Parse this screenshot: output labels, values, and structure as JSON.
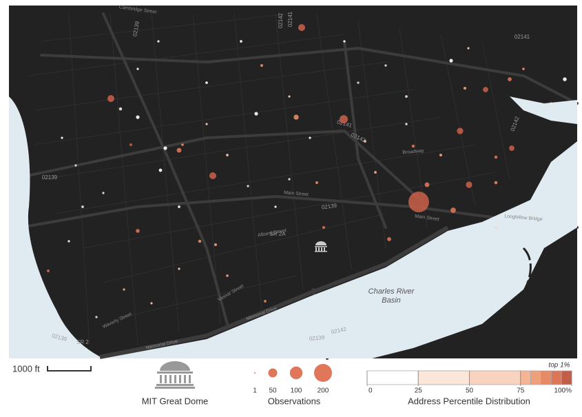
{
  "map": {
    "labels": [
      "Main Street",
      "Main Street",
      "Memorial Drive",
      "Memorial Drive",
      "Vassar Street",
      "Albany Street",
      "Waverly Street",
      "Broadway",
      "Cambridge Street",
      "Longfellow Bridge",
      "02139",
      "02139",
      "02139",
      "02139",
      "02139",
      "02141",
      "02141",
      "02141",
      "02142",
      "02142",
      "02142",
      "02142",
      "SR 2A",
      "SR 2"
    ],
    "water_labels": [
      "Charles River",
      "Basin"
    ],
    "points": {
      "observations": [
        265,
        43,
        30,
        30,
        30,
        25,
        18,
        18,
        25,
        18,
        10,
        16,
        14,
        10,
        14,
        9,
        4,
        4,
        8,
        8,
        9,
        8,
        8,
        7,
        6,
        6,
        5,
        6,
        6,
        6,
        5,
        5,
        4,
        5,
        5,
        4,
        4,
        3,
        3,
        3,
        3,
        3,
        4,
        3,
        5,
        3,
        3,
        4,
        3,
        3,
        3,
        3,
        4,
        3,
        3,
        4,
        3,
        4,
        3,
        3,
        3,
        4,
        3,
        3,
        3,
        5,
        4,
        3,
        4,
        3
      ],
      "percentiles": [
        99,
        97,
        96,
        96,
        95,
        97,
        96,
        95,
        96,
        94,
        93,
        88,
        92,
        92,
        93,
        91,
        90,
        89,
        10,
        15,
        5,
        20,
        12,
        8,
        30,
        85,
        82,
        92,
        90,
        88,
        80,
        84,
        60,
        86,
        87,
        55,
        40,
        15,
        5,
        70,
        25,
        50,
        20,
        30,
        90,
        45,
        10,
        5,
        18,
        78,
        60,
        30,
        86,
        40,
        65,
        83,
        20,
        5,
        35,
        15,
        70,
        78,
        8,
        50,
        35,
        96,
        88,
        40,
        25,
        12
      ]
    }
  },
  "legend": {
    "scale_bar": "1000 ft",
    "landmark": "MIT Great Dome",
    "size": {
      "title": "Observations",
      "values": [
        1,
        50,
        100,
        200
      ]
    },
    "color": {
      "title": "Address Percentile Distribution",
      "note": "top 1%",
      "edges": [
        0,
        25,
        50,
        75,
        80,
        85,
        90,
        95,
        100
      ],
      "colors": [
        "#ffffff",
        "#fbe6da",
        "#f8d3bf",
        "#f3b592",
        "#ee9f7b",
        "#e78b67",
        "#dc7657",
        "#c25d48"
      ],
      "ticks": [
        0,
        25,
        50,
        75,
        {
          "value": 100,
          "label": "100%"
        }
      ]
    }
  }
}
